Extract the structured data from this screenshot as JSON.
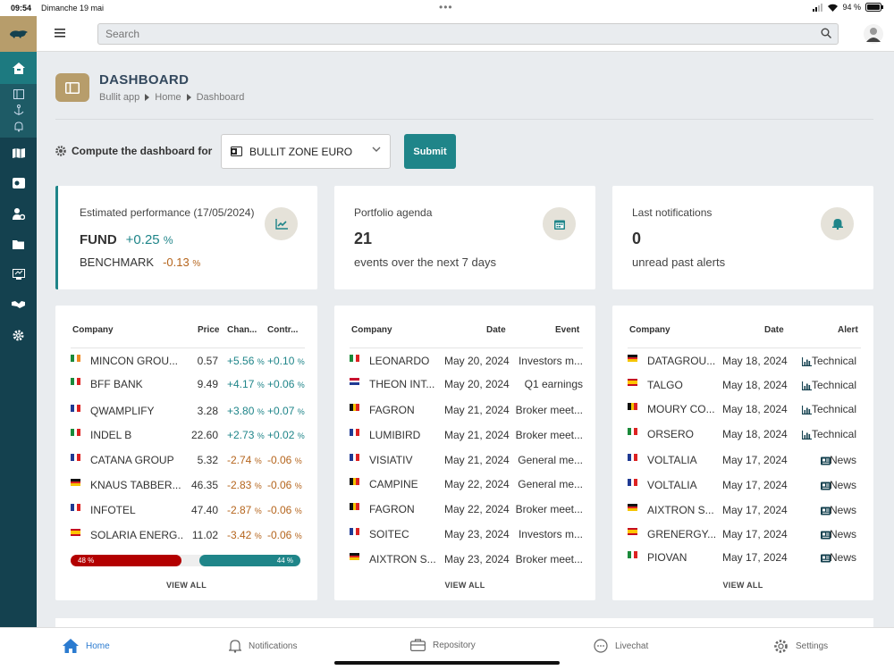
{
  "status": {
    "time": "09:54",
    "date": "Dimanche 19 mai",
    "battery": "94 %"
  },
  "search": {
    "placeholder": "Search"
  },
  "page": {
    "title": "DASHBOARD",
    "breadcrumb": [
      "Bullit app",
      "Home",
      "Dashboard"
    ]
  },
  "compute": {
    "label": "Compute the dashboard for",
    "selected": "BULLIT ZONE EURO",
    "submit": "Submit"
  },
  "performance": {
    "label": "Estimated performance (17/05/2024)",
    "fund_label": "FUND",
    "fund_value": "+0.25",
    "benchmark_label": "BENCHMARK",
    "benchmark_value": "-0.13",
    "unit": "%"
  },
  "agenda": {
    "label": "Portfolio agenda",
    "count": "21",
    "sub": "events over the next 7 days"
  },
  "notifs": {
    "label": "Last notifications",
    "count": "0",
    "sub": "unread past alerts"
  },
  "perf_table": {
    "headers": [
      "Company",
      "Price",
      "Chan...",
      "Contr..."
    ],
    "rows": [
      {
        "flag": "ie",
        "company": "MINCON GROU...",
        "price": "0.57",
        "change": "+5.56",
        "contrib": "+0.10",
        "dir": "up"
      },
      {
        "flag": "it",
        "company": "BFF BANK",
        "price": "9.49",
        "change": "+4.17",
        "contrib": "+0.06",
        "dir": "up"
      },
      {
        "flag": "fr",
        "company": "QWAMPLIFY",
        "price": "3.28",
        "change": "+3.80",
        "contrib": "+0.07",
        "dir": "up"
      },
      {
        "flag": "it",
        "company": "INDEL B",
        "price": "22.60",
        "change": "+2.73",
        "contrib": "+0.02",
        "dir": "up"
      },
      {
        "flag": "fr",
        "company": "CATANA GROUP",
        "price": "5.32",
        "change": "-2.74",
        "contrib": "-0.06",
        "dir": "down"
      },
      {
        "flag": "de",
        "company": "KNAUS TABBER...",
        "price": "46.35",
        "change": "-2.83",
        "contrib": "-0.06",
        "dir": "down"
      },
      {
        "flag": "fr",
        "company": "INFOTEL",
        "price": "47.40",
        "change": "-2.87",
        "contrib": "-0.06",
        "dir": "down"
      },
      {
        "flag": "es",
        "company": "SOLARIA ENERG...",
        "price": "11.02",
        "change": "-3.42",
        "contrib": "-0.06",
        "dir": "down"
      }
    ],
    "unit": "%",
    "neg_share": "48 %",
    "pos_share": "44 %",
    "view_all": "VIEW ALL"
  },
  "agenda_table": {
    "headers": [
      "Company",
      "Date",
      "Event"
    ],
    "rows": [
      {
        "flag": "it",
        "company": "LEONARDO",
        "date": "May 20, 2024",
        "event": "Investors m..."
      },
      {
        "flag": "nl",
        "company": "THEON INT...",
        "date": "May 20, 2024",
        "event": "Q1 earnings"
      },
      {
        "flag": "be",
        "company": "FAGRON",
        "date": "May 21, 2024",
        "event": "Broker meet..."
      },
      {
        "flag": "fr",
        "company": "LUMIBIRD",
        "date": "May 21, 2024",
        "event": "Broker meet..."
      },
      {
        "flag": "fr",
        "company": "VISIATIV",
        "date": "May 21, 2024",
        "event": "General me..."
      },
      {
        "flag": "be",
        "company": "CAMPINE",
        "date": "May 22, 2024",
        "event": "General me..."
      },
      {
        "flag": "be",
        "company": "FAGRON",
        "date": "May 22, 2024",
        "event": "Broker meet..."
      },
      {
        "flag": "fr",
        "company": "SOITEC",
        "date": "May 23, 2024",
        "event": "Investors m..."
      },
      {
        "flag": "de",
        "company": "AIXTRON S...",
        "date": "May 23, 2024",
        "event": "Broker meet..."
      }
    ],
    "view_all": "VIEW ALL"
  },
  "alerts_table": {
    "headers": [
      "Company",
      "Date",
      "Alert"
    ],
    "rows": [
      {
        "flag": "de",
        "company": "DATAGROU...",
        "date": "May 18, 2024",
        "alert": "Technical",
        "icon": "chart-icon"
      },
      {
        "flag": "es",
        "company": "TALGO",
        "date": "May 18, 2024",
        "alert": "Technical",
        "icon": "chart-icon"
      },
      {
        "flag": "be",
        "company": "MOURY CO...",
        "date": "May 18, 2024",
        "alert": "Technical",
        "icon": "chart-icon"
      },
      {
        "flag": "it",
        "company": "ORSERO",
        "date": "May 18, 2024",
        "alert": "Technical",
        "icon": "chart-icon"
      },
      {
        "flag": "fr",
        "company": "VOLTALIA",
        "date": "May 17, 2024",
        "alert": "News",
        "icon": "newspaper-icon"
      },
      {
        "flag": "fr",
        "company": "VOLTALIA",
        "date": "May 17, 2024",
        "alert": "News",
        "icon": "newspaper-icon"
      },
      {
        "flag": "de",
        "company": "AIXTRON S...",
        "date": "May 17, 2024",
        "alert": "News",
        "icon": "newspaper-icon"
      },
      {
        "flag": "es",
        "company": "GRENERGY...",
        "date": "May 17, 2024",
        "alert": "News",
        "icon": "newspaper-icon"
      },
      {
        "flag": "it",
        "company": "PIOVAN",
        "date": "May 17, 2024",
        "alert": "News",
        "icon": "newspaper-icon"
      }
    ],
    "view_all": "VIEW ALL"
  },
  "tabbar": {
    "home": "Home",
    "notifications": "Notifications",
    "repository": "Repository",
    "livechat": "Livechat",
    "settings": "Settings"
  },
  "colors": {
    "accent": "#1f8589",
    "gold": "#b79d6b",
    "sidebar": "#14414f",
    "negative": "#b5651d",
    "neg_bar": "#b30000",
    "tab_active": "#2b7bd0"
  }
}
